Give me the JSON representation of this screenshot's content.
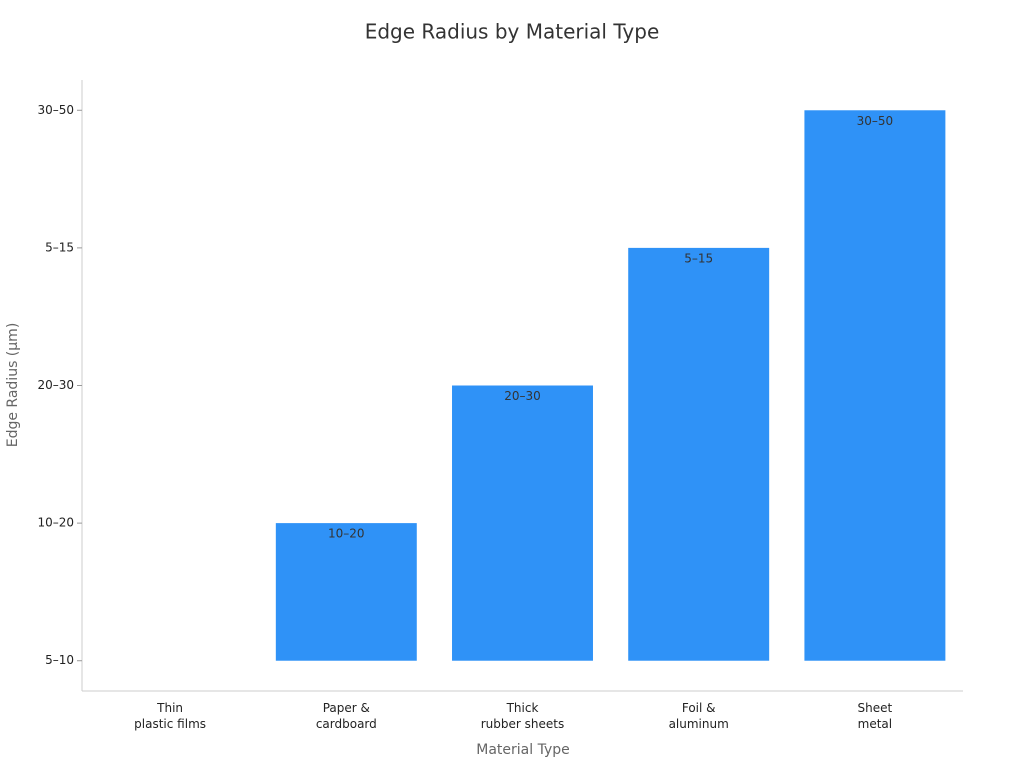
{
  "chart_data": {
    "type": "bar",
    "title": "Edge Radius by Material Type",
    "x_label": "Material Type",
    "y_label": "Edge Radius (µm)",
    "categories": [
      "Thin\nplastic films",
      "Paper &\ncardboard",
      "Thick\nrubber sheets",
      "Foil &\naluminum",
      "Sheet\nmetal"
    ],
    "values": [
      0,
      1,
      2,
      3,
      4
    ],
    "value_labels": [
      null,
      "10–20",
      "20–30",
      "5–15",
      "30–50"
    ],
    "color": "#2f92f7",
    "ylim": [
      -0.22,
      4.22
    ],
    "yticks": [
      {
        "value": 0,
        "label": "5–10"
      },
      {
        "value": 1,
        "label": "10–20"
      },
      {
        "value": 2,
        "label": "20–30"
      },
      {
        "value": 3,
        "label": "5–15"
      },
      {
        "value": 4,
        "label": "30–50"
      }
    ],
    "grid": false
  }
}
